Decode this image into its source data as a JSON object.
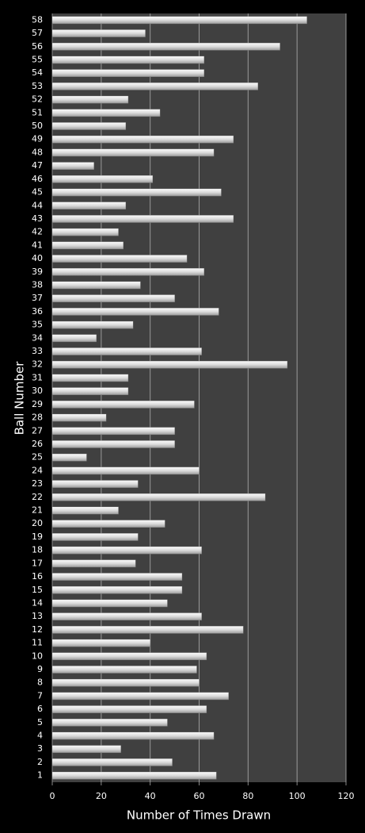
{
  "chart_data": {
    "type": "bar",
    "orientation": "horizontal",
    "x_label": "Number of Times Drawn",
    "y_label": "Ball Number",
    "categories": [
      "1",
      "2",
      "3",
      "4",
      "5",
      "6",
      "7",
      "8",
      "9",
      "10",
      "11",
      "12",
      "13",
      "14",
      "15",
      "16",
      "17",
      "18",
      "19",
      "20",
      "21",
      "22",
      "23",
      "24",
      "25",
      "26",
      "27",
      "28",
      "29",
      "30",
      "31",
      "32",
      "33",
      "34",
      "35",
      "36",
      "37",
      "38",
      "39",
      "40",
      "41",
      "42",
      "43",
      "44",
      "45",
      "46",
      "47",
      "48",
      "49",
      "50",
      "51",
      "52",
      "53",
      "54",
      "55",
      "56",
      "57",
      "58"
    ],
    "values": [
      67,
      49,
      28,
      66,
      47,
      63,
      72,
      60,
      59,
      63,
      40,
      78,
      61,
      47,
      53,
      53,
      34,
      61,
      35,
      46,
      27,
      87,
      35,
      60,
      14,
      50,
      50,
      22,
      58,
      31,
      31,
      96,
      61,
      18,
      33,
      68,
      50,
      36,
      62,
      55,
      29,
      27,
      74,
      30,
      69,
      41,
      17,
      66,
      74,
      30,
      44,
      31,
      84,
      62,
      62,
      93,
      38,
      104
    ],
    "color": "#e8e8e8",
    "xlim": [
      0,
      120
    ],
    "xticks": [
      0,
      20,
      40,
      60,
      80,
      100,
      120
    ],
    "grid": true
  }
}
